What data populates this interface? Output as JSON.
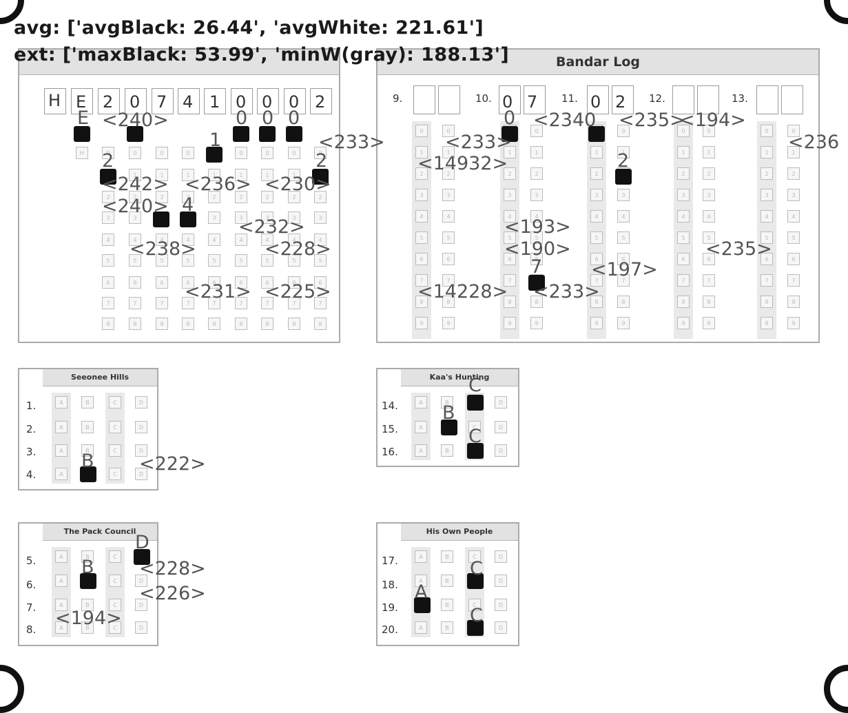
{
  "header": {
    "avg": "avg: ['avgBlack: 26.44', 'avgWhite: 221.61']",
    "ext": "ext: ['maxBlack: 53.99', 'minW(gray): 188.13']"
  },
  "panels": {
    "bandar": {
      "title": "Bandar Log",
      "numbers": [
        "9.",
        "10.",
        "11.",
        "12.",
        "13."
      ],
      "written": [
        "0",
        "7",
        "0",
        "2"
      ]
    },
    "seeonee": {
      "title": "Seeonee Hills",
      "questions": [
        "1.",
        "2.",
        "3.",
        "4."
      ]
    },
    "kaa": {
      "title": "Kaa's Hunting",
      "questions": [
        "14.",
        "15.",
        "16."
      ]
    },
    "pack": {
      "title": "The Pack Council",
      "questions": [
        "5.",
        "6.",
        "7.",
        "8."
      ]
    },
    "own": {
      "title": "His Own People",
      "questions": [
        "17.",
        "18.",
        "19.",
        "20."
      ]
    }
  },
  "roll_written": [
    "H",
    "E",
    "2",
    "0",
    "7",
    "4",
    "1",
    "0",
    "0",
    "0",
    "2"
  ],
  "bubble_letters": [
    "A",
    "B",
    "C",
    "D"
  ],
  "mark_labels": {
    "roll": [
      "E",
      "0",
      "0",
      "0",
      "1",
      "2",
      "2",
      "4"
    ],
    "bandar": [
      "0",
      "2",
      "7"
    ],
    "seeonee": [
      "B"
    ],
    "kaa": [
      "C",
      "B",
      "C"
    ],
    "pack": [
      "D",
      "B"
    ],
    "own": [
      "C",
      "A",
      "C"
    ]
  },
  "intensity_labels": [
    "<240>",
    "<233>",
    "<242>",
    "<236>",
    "<230>",
    "<240>",
    "<232>",
    "<238>",
    "<228>",
    "<231>",
    "<225>",
    "<233>",
    "<2340",
    "<235>",
    "<194>",
    "<236",
    "<14932>",
    "<193>",
    "<190>",
    "<197>",
    "<235>",
    "<14228>",
    "<233>",
    "<222>",
    "<228>",
    "<226>",
    "<194>"
  ],
  "colors": {
    "filled_bubble": "#111111",
    "label_gray": "#555555",
    "title_band": "#e2e2e2"
  },
  "icons": [
    "registration-mark-icon"
  ]
}
